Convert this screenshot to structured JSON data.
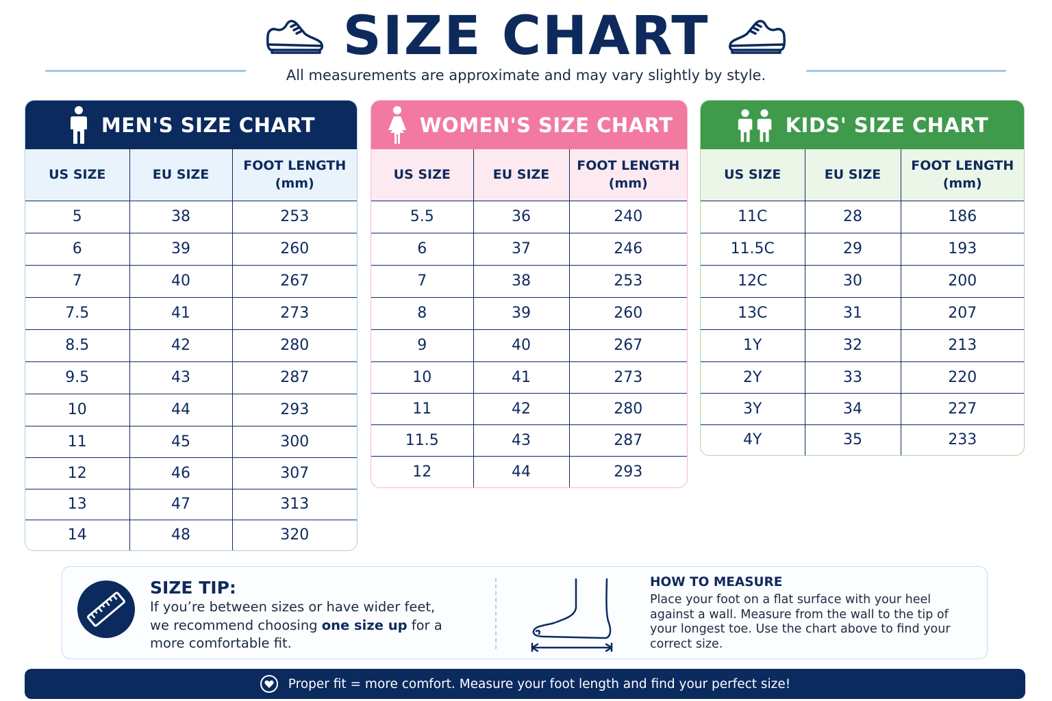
{
  "header": {
    "title": "SIZE CHART",
    "subtitle": "All measurements are approximate and may vary slightly by style."
  },
  "colors": {
    "navy": "#0b2a5e",
    "pink": "#f27aa0",
    "green": "#3f9a4c",
    "light_blue_rule": "#9ec7e6"
  },
  "icons": {
    "left_shoe": "sneaker-icon",
    "right_shoe": "sneaker-icon",
    "men": "man-icon",
    "women": "woman-icon",
    "kids": "children-icon",
    "tip": "ruler-icon",
    "measure": "foot-measure-icon",
    "footer": "heart-icon"
  },
  "men": {
    "title": "MEN'S SIZE CHART",
    "columns": [
      "US SIZE",
      "EU SIZE",
      "FOOT LENGTH\n(mm)"
    ],
    "rows": [
      [
        "5",
        "38",
        "253"
      ],
      [
        "6",
        "39",
        "260"
      ],
      [
        "7",
        "40",
        "267"
      ],
      [
        "7.5",
        "41",
        "273"
      ],
      [
        "8.5",
        "42",
        "280"
      ],
      [
        "9.5",
        "43",
        "287"
      ],
      [
        "10",
        "44",
        "293"
      ],
      [
        "11",
        "45",
        "300"
      ],
      [
        "12",
        "46",
        "307"
      ],
      [
        "13",
        "47",
        "313"
      ],
      [
        "14",
        "48",
        "320"
      ]
    ]
  },
  "women": {
    "title": "WOMEN'S SIZE CHART",
    "columns": [
      "US SIZE",
      "EU SIZE",
      "FOOT LENGTH\n(mm)"
    ],
    "rows": [
      [
        "5.5",
        "36",
        "240"
      ],
      [
        "6",
        "37",
        "246"
      ],
      [
        "7",
        "38",
        "253"
      ],
      [
        "8",
        "39",
        "260"
      ],
      [
        "9",
        "40",
        "267"
      ],
      [
        "10",
        "41",
        "273"
      ],
      [
        "11",
        "42",
        "280"
      ],
      [
        "11.5",
        "43",
        "287"
      ],
      [
        "12",
        "44",
        "293"
      ]
    ]
  },
  "kids": {
    "title": "KIDS' SIZE CHART",
    "columns": [
      "US SIZE",
      "EU SIZE",
      "FOOT LENGTH\n(mm)"
    ],
    "rows": [
      [
        "11C",
        "28",
        "186"
      ],
      [
        "11.5C",
        "29",
        "193"
      ],
      [
        "12C",
        "30",
        "200"
      ],
      [
        "13C",
        "31",
        "207"
      ],
      [
        "1Y",
        "32",
        "213"
      ],
      [
        "2Y",
        "33",
        "220"
      ],
      [
        "3Y",
        "34",
        "227"
      ],
      [
        "4Y",
        "35",
        "233"
      ]
    ]
  },
  "tip": {
    "title": "SIZE TIP:",
    "text_before": "If you’re between sizes or have wider feet, we recommend choosing ",
    "text_bold": "one size up",
    "text_after": " for a more comfortable fit."
  },
  "measure": {
    "title": "HOW TO MEASURE",
    "text": "Place your foot on a flat surface with your heel against a wall. Measure from the wall to the tip of your longest toe. Use the chart above to find your correct size."
  },
  "footer": {
    "text": "Proper fit = more comfort. Measure your foot length and find your perfect size!"
  }
}
